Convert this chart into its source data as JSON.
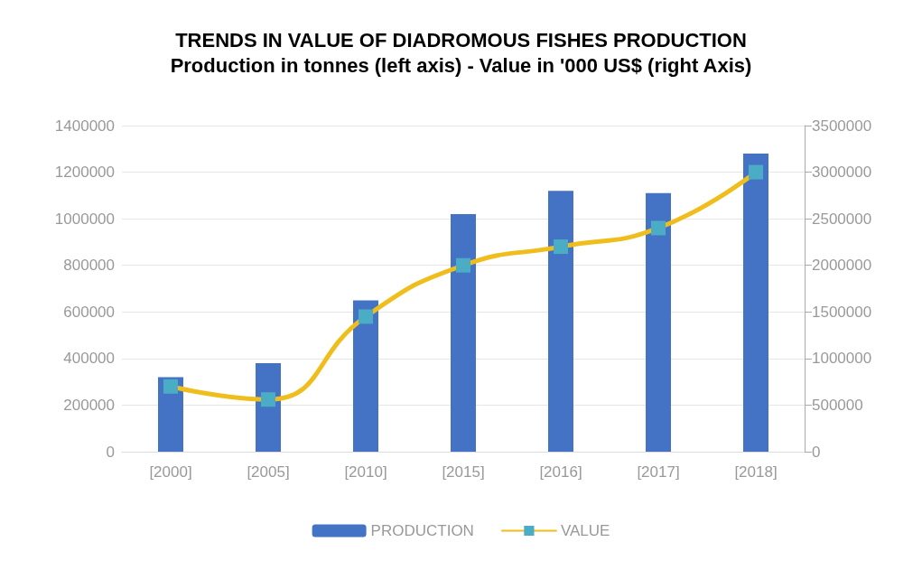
{
  "chart_data": {
    "type": "bar",
    "title": "TRENDS IN VALUE OF DIADROMOUS FISHES PRODUCTION",
    "subtitle": "Production in tonnes (left axis) - Value in '000 US$ (right Axis)",
    "categories": [
      "[2000]",
      "[2005]",
      "[2010]",
      "[2015]",
      "[2016]",
      "[2017]",
      "[2018]"
    ],
    "series": [
      {
        "name": "PRODUCTION",
        "color": "#4472c4",
        "values": [
          320000,
          380000,
          650000,
          1020000,
          1120000,
          1110000,
          1280000
        ]
      },
      {
        "name": "VALUE",
        "type": "line",
        "axis": "y2",
        "color": "#f0be1c",
        "marker": "square",
        "values": [
          700000,
          560000,
          1450000,
          2000000,
          2200000,
          2400000,
          3000000
        ]
      }
    ],
    "ylim": [
      0,
      1400000
    ],
    "yticks": [
      0,
      200000,
      400000,
      600000,
      800000,
      1000000,
      1200000,
      1400000
    ],
    "y2lim": [
      0,
      3500000
    ],
    "y2ticks": [
      0,
      500000,
      1000000,
      1500000,
      2000000,
      2500000,
      3000000,
      3500000
    ],
    "grid": "y",
    "legend": "bottom"
  }
}
